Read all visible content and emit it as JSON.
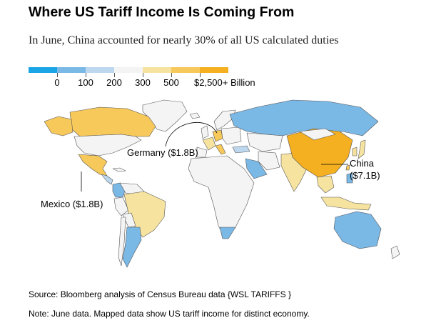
{
  "header": {
    "title": "Where US Tariff Income Is Coming From",
    "subtitle": "In June, China accounted for nearly 30% of all US calculated duties"
  },
  "legend": {
    "colors": [
      "#1aa6e6",
      "#7ab8e6",
      "#bdd7ee",
      "#f4f4f4",
      "#f6e3a0",
      "#f7c85a",
      "#f5b021"
    ],
    "labels": [
      "0",
      "100",
      "200",
      "300",
      "500",
      "$2,500+ Billion"
    ]
  },
  "annotations": {
    "germany": "Germany ($1.8B)",
    "mexico": "Mexico ($1.8B)",
    "china_name": "China",
    "china_value": "($7.1B)"
  },
  "map": {
    "country_values": {
      "China": 7.1,
      "Germany": 1.8,
      "Mexico": 1.8
    }
  },
  "footer": {
    "source": "Source: Bloomberg analysis of Census Bureau data {WSL TARIFFS }",
    "note": "Note: June data. Mapped data show US tariff income for distinct economy."
  }
}
